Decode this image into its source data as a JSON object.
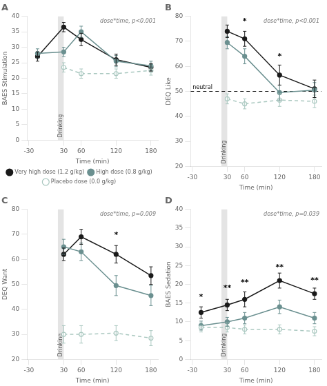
{
  "chart_data": [
    {
      "type": "line",
      "title": "A",
      "x_label": "Time (min)",
      "y_label": "BAES Stimulation",
      "x": [
        -15,
        30,
        60,
        120,
        180
      ],
      "xlim": [
        -33,
        192
      ],
      "xticks": [
        -30,
        30,
        60,
        120,
        180
      ],
      "ylim": [
        0,
        40
      ],
      "yticks": [
        0,
        5,
        10,
        15,
        20,
        25,
        30,
        35,
        40
      ],
      "grid": false,
      "legend": "bottom",
      "stat_text": "dose*time, p<0.001",
      "shade": {
        "x0": 20,
        "x1": 30,
        "label": "Drinking"
      },
      "series": [
        {
          "name": "Very high dose (1.2 g/kg)",
          "color": "#1a1a1a",
          "marker": "filled_circle",
          "line_style": "solid",
          "values": [
            27.0,
            36.5,
            32.5,
            26.0,
            23.5
          ],
          "errors": [
            1.5,
            1.5,
            2.0,
            1.8,
            1.2
          ]
        },
        {
          "name": "High dose (0.8 g/kg)",
          "color": "#6b9090",
          "marker": "filled_circle",
          "line_style": "solid",
          "values": [
            28.0,
            28.5,
            35.0,
            25.5,
            24.0
          ],
          "errors": [
            1.5,
            1.5,
            1.8,
            1.8,
            1.5
          ]
        },
        {
          "name": "Placebo dose (0.0 g/kg)",
          "color": "#aac8c0",
          "marker": "open_circle",
          "line_style": "dashed",
          "values": [
            null,
            23.5,
            21.5,
            21.5,
            22.5
          ],
          "errors": [
            null,
            1.5,
            1.5,
            1.5,
            1.5
          ]
        }
      ]
    },
    {
      "type": "line",
      "title": "B",
      "x_label": "Time (min)",
      "y_label": "DEQ Like",
      "x": [
        -15,
        30,
        60,
        120,
        180
      ],
      "xlim": [
        -33,
        192
      ],
      "xticks": [
        -30,
        30,
        60,
        120,
        180
      ],
      "ylim": [
        20,
        80
      ],
      "yticks": [
        20,
        30,
        40,
        50,
        60,
        70,
        80
      ],
      "grid": false,
      "legend": false,
      "stat_text": "dose*time, p<0.001",
      "shade": {
        "x0": 20,
        "x1": 30,
        "label": "Drinking"
      },
      "hline": {
        "y": 50,
        "label": "neutral",
        "color": "#000000",
        "line_style": "dashed"
      },
      "annotations": [
        {
          "x": 60,
          "y": 77,
          "text": "*"
        },
        {
          "x": 120,
          "y": 63,
          "text": "*"
        }
      ],
      "series": [
        {
          "color": "#1a1a1a",
          "marker": "filled_circle",
          "line_style": "solid",
          "values": [
            null,
            74.0,
            71.0,
            56.5,
            51.0
          ],
          "errors": [
            null,
            2.5,
            3.0,
            4.0,
            3.5
          ]
        },
        {
          "color": "#6b9090",
          "marker": "filled_circle",
          "line_style": "solid",
          "values": [
            null,
            69.5,
            64.0,
            49.5,
            50.5
          ],
          "errors": [
            null,
            2.5,
            3.0,
            3.0,
            3.0
          ]
        },
        {
          "color": "#aac8c0",
          "marker": "open_circle",
          "line_style": "dashed",
          "values": [
            null,
            47.0,
            45.0,
            46.5,
            46.0
          ],
          "errors": [
            null,
            2.0,
            2.0,
            2.5,
            2.5
          ]
        }
      ]
    },
    {
      "type": "line",
      "title": "C",
      "x_label": "Time (min)",
      "y_label": "DEQ Want",
      "x": [
        -15,
        30,
        60,
        120,
        180
      ],
      "xlim": [
        -33,
        192
      ],
      "xticks": [
        -30,
        30,
        60,
        120,
        180
      ],
      "ylim": [
        20,
        80
      ],
      "yticks": [
        20,
        30,
        40,
        50,
        60,
        70,
        80
      ],
      "grid": false,
      "legend": false,
      "stat_text": "dose*time, p=0.009",
      "shade": {
        "x0": 20,
        "x1": 30,
        "label": "Drinking"
      },
      "annotations": [
        {
          "x": 120,
          "y": 69,
          "text": "*"
        }
      ],
      "series": [
        {
          "color": "#1a1a1a",
          "marker": "filled_circle",
          "line_style": "solid",
          "values": [
            null,
            62.0,
            69.0,
            62.0,
            53.5
          ],
          "errors": [
            null,
            2.5,
            3.0,
            3.5,
            3.5
          ]
        },
        {
          "color": "#6b9090",
          "marker": "filled_circle",
          "line_style": "solid",
          "values": [
            null,
            65.0,
            63.0,
            49.5,
            45.5
          ],
          "errors": [
            null,
            3.0,
            3.5,
            4.0,
            4.0
          ]
        },
        {
          "color": "#aac8c0",
          "marker": "open_circle",
          "line_style": "dashed",
          "values": [
            null,
            30.0,
            30.0,
            30.5,
            28.5
          ],
          "errors": [
            null,
            3.5,
            3.5,
            3.0,
            3.0
          ]
        }
      ]
    },
    {
      "type": "line",
      "title": "D",
      "x_label": "Time (min)",
      "y_label": "BAES Sedation",
      "x": [
        -15,
        30,
        60,
        120,
        180
      ],
      "xlim": [
        -33,
        192
      ],
      "xticks": [
        -30,
        30,
        60,
        120,
        180
      ],
      "ylim": [
        0,
        40
      ],
      "yticks": [
        0,
        5,
        10,
        15,
        20,
        25,
        30,
        35,
        40
      ],
      "grid": false,
      "legend": false,
      "stat_text": "dose*time, p=0.039",
      "shade": {
        "x0": 20,
        "x1": 30,
        "label": "Drinking"
      },
      "annotations": [
        {
          "x": -15,
          "y": 16.0,
          "text": "*"
        },
        {
          "x": 30,
          "y": 18.5,
          "text": "**"
        },
        {
          "x": 60,
          "y": 20.0,
          "text": "**"
        },
        {
          "x": 120,
          "y": 24.0,
          "text": "**"
        },
        {
          "x": 180,
          "y": 20.5,
          "text": "**"
        }
      ],
      "series": [
        {
          "color": "#1a1a1a",
          "marker": "filled_circle",
          "line_style": "solid",
          "values": [
            12.5,
            14.5,
            16.0,
            21.0,
            17.5
          ],
          "errors": [
            1.5,
            1.5,
            2.0,
            2.0,
            1.5
          ]
        },
        {
          "color": "#6b9090",
          "marker": "filled_circle",
          "line_style": "solid",
          "values": [
            9.0,
            10.0,
            11.0,
            14.0,
            11.0
          ],
          "errors": [
            1.2,
            1.2,
            1.5,
            1.8,
            1.5
          ]
        },
        {
          "color": "#aac8c0",
          "marker": "open_circle",
          "line_style": "dashed",
          "values": [
            8.5,
            8.5,
            8.0,
            8.0,
            7.5
          ],
          "errors": [
            1.2,
            1.2,
            1.2,
            1.2,
            1.2
          ]
        }
      ]
    }
  ]
}
